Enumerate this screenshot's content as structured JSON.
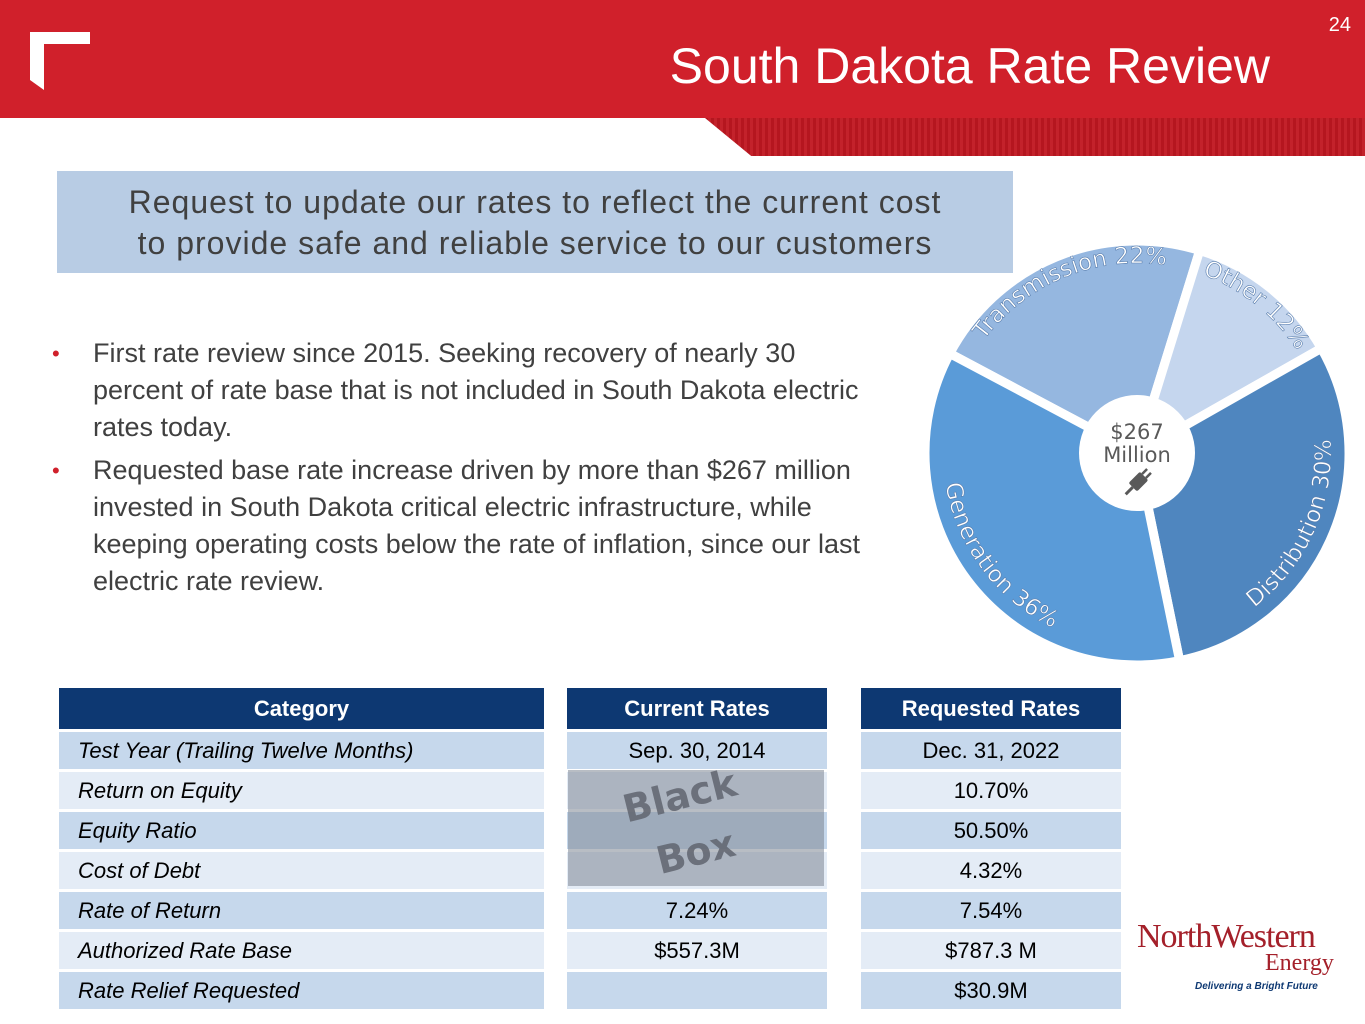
{
  "header": {
    "title": "South Dakota Rate Review",
    "page_number": "24"
  },
  "callout": {
    "line1": "Request to update our rates to reflect the current cost",
    "line2": "to provide safe and reliable service to our customers"
  },
  "bullets": [
    "First rate review since 2015.  Seeking recovery of nearly 30 percent of rate base that is not included in South Dakota electric rates today.",
    "Requested base rate increase driven by more than $267 million invested in South Dakota critical electric infrastructure, while keeping operating costs below the rate of inflation, since our last electric rate review."
  ],
  "chart_data": {
    "type": "pie",
    "center_label": [
      "$267",
      "Million"
    ],
    "slices": [
      {
        "label": "Transmission 22%",
        "value": 22,
        "color": "#95b7e0"
      },
      {
        "label": "Other 12%",
        "value": 12,
        "color": "#c5d6ee"
      },
      {
        "label": "Distribution 30%",
        "value": 30,
        "color": "#4f86bf"
      },
      {
        "label": "Generation 36%",
        "value": 36,
        "color": "#5a9bd8"
      }
    ]
  },
  "tables": {
    "category": {
      "header": "Category",
      "rows": [
        "Test Year (Trailing Twelve Months)",
        "Return on Equity",
        "Equity Ratio",
        "Cost of Debt",
        "Rate of Return",
        "Authorized Rate Base",
        "Rate Relief Requested"
      ]
    },
    "current": {
      "header": "Current Rates",
      "rows": [
        "Sep. 30, 2014",
        "",
        "",
        "",
        "7.24%",
        "$557.3M",
        ""
      ]
    },
    "requested": {
      "header": "Requested Rates",
      "rows": [
        "Dec. 31, 2022",
        "10.70%",
        "50.50%",
        "4.32%",
        "7.54%",
        "$787.3 M",
        "$30.9M"
      ]
    }
  },
  "black_box": [
    "Black",
    "Box"
  ],
  "logo": {
    "name": "NorthWestern",
    "energy": "Energy",
    "tagline": "Delivering a Bright Future"
  },
  "colors": {
    "brand_red": "#d0202b",
    "header_navy": "#0d3872",
    "callout_blue": "#b8cce4"
  }
}
